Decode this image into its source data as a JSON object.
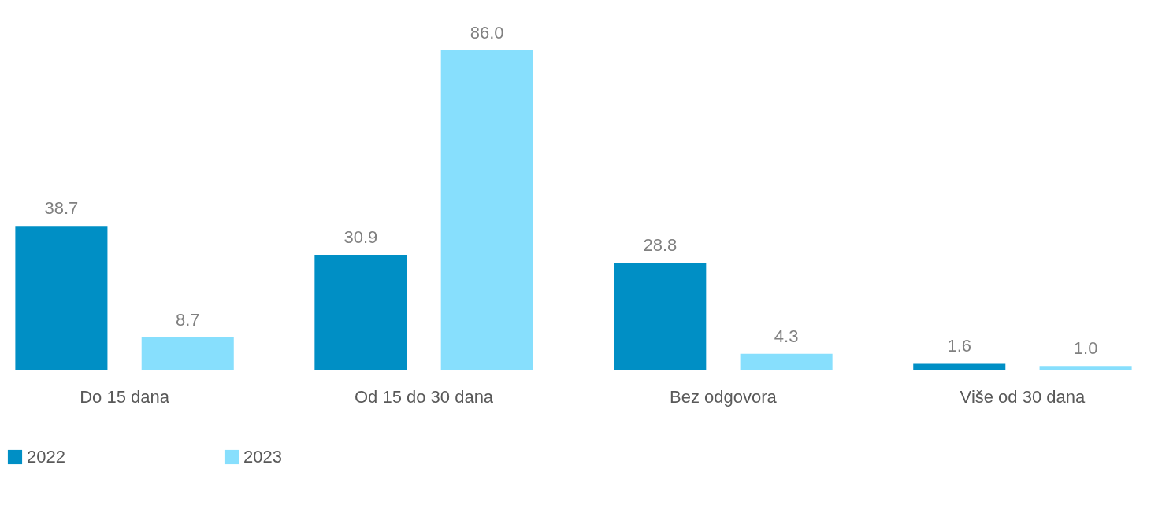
{
  "chart_data": {
    "type": "bar",
    "categories": [
      "Do 15 dana",
      "Od 15 do 30 dana",
      "Bez odgovora",
      "Više od 30 dana"
    ],
    "series": [
      {
        "name": "2022",
        "color": "#008fc5",
        "values": [
          38.7,
          30.9,
          28.8,
          1.6
        ],
        "value_labels": [
          "38.7",
          "30.9",
          "28.8",
          "1.6"
        ]
      },
      {
        "name": "2023",
        "color": "#87dffd",
        "values": [
          8.7,
          86.0,
          4.3,
          1.0
        ],
        "value_labels": [
          "8.7",
          "86.0",
          "4.3",
          "1.0"
        ]
      }
    ],
    "legend": "bottom",
    "grid": false
  }
}
